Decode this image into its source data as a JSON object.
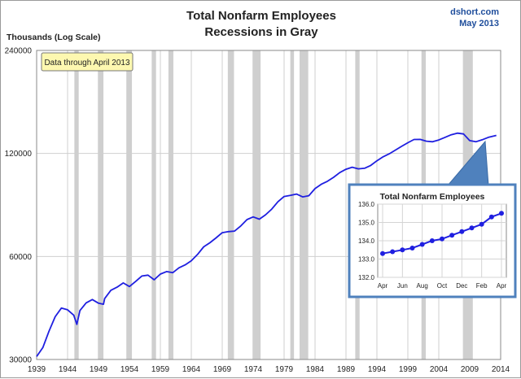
{
  "header": {
    "title_line1": "Total Nonfarm Employees",
    "title_line2": "Recessions in Gray",
    "source": "dshort.com",
    "date": "May 2013"
  },
  "chart_data": [
    {
      "type": "line",
      "title": "Total Nonfarm Employees",
      "subtitle": "Recessions in Gray",
      "ylabel": "Thousands (Log Scale)",
      "xlabel": "",
      "annotation": "Data through April 2013",
      "y_scale": "log",
      "ylim": [
        30000,
        240000
      ],
      "xlim": [
        1939,
        2014
      ],
      "y_ticks": [
        30000,
        60000,
        120000,
        240000
      ],
      "y_tick_labels": [
        "30000",
        "60000",
        "120000",
        "240000"
      ],
      "x_ticks": [
        1939,
        1944,
        1949,
        1954,
        1959,
        1964,
        1969,
        1974,
        1979,
        1984,
        1989,
        1994,
        1999,
        2004,
        2009,
        2014
      ],
      "x_tick_labels": [
        "1939",
        "1944",
        "1949",
        "1954",
        "1959",
        "1964",
        "1969",
        "1974",
        "1979",
        "1984",
        "1989",
        "1994",
        "1999",
        "2004",
        "2009",
        "2014"
      ],
      "grid": true,
      "line_color": "#1f1fe0",
      "recession_color": "#cfcfcf",
      "recessions": [
        [
          1945.1,
          1945.8
        ],
        [
          1948.9,
          1949.8
        ],
        [
          1953.5,
          1954.4
        ],
        [
          1957.6,
          1958.3
        ],
        [
          1960.3,
          1961.1
        ],
        [
          1969.9,
          1970.9
        ],
        [
          1973.9,
          1975.2
        ],
        [
          1980.0,
          1980.6
        ],
        [
          1981.5,
          1982.9
        ],
        [
          1990.5,
          1991.2
        ],
        [
          2001.2,
          2001.9
        ],
        [
          2007.9,
          2009.5
        ]
      ],
      "series": [
        {
          "x": [
            1939,
            1940,
            1941,
            1942,
            1943,
            1944,
            1945,
            1945.5,
            1946,
            1947,
            1948,
            1949,
            1949.8,
            1950,
            1951,
            1952,
            1953,
            1954,
            1955,
            1956,
            1957,
            1958,
            1959,
            1960,
            1961,
            1962,
            1963,
            1964,
            1965,
            1966,
            1967,
            1968,
            1969,
            1970,
            1971,
            1972,
            1973,
            1974,
            1975,
            1976,
            1977,
            1978,
            1979,
            1980,
            1981,
            1982,
            1983,
            1984,
            1985,
            1986,
            1987,
            1988,
            1989,
            1990,
            1991,
            1992,
            1993,
            1994,
            1995,
            1996,
            1997,
            1998,
            1999,
            2000,
            2001,
            2002,
            2003,
            2004,
            2005,
            2006,
            2007,
            2008,
            2009,
            2010,
            2011,
            2012,
            2013.3
          ],
          "values": [
            30600,
            32500,
            36300,
            40000,
            42400,
            41900,
            40400,
            38000,
            41700,
            43900,
            44900,
            43800,
            43500,
            45200,
            47800,
            48800,
            50200,
            49000,
            50700,
            52600,
            52900,
            51300,
            53300,
            54200,
            53800,
            55600,
            56700,
            58300,
            60800,
            64000,
            65800,
            68000,
            70400,
            70900,
            71200,
            73700,
            76900,
            78300,
            77100,
            79400,
            82500,
            86700,
            89800,
            90500,
            91300,
            89600,
            90300,
            94700,
            97500,
            99500,
            102200,
            105500,
            107900,
            109400,
            108200,
            108600,
            110700,
            114200,
            117300,
            119700,
            122800,
            125900,
            129000,
            131800,
            131900,
            130300,
            129800,
            131400,
            133700,
            136100,
            137600,
            136800,
            130800,
            129800,
            131500,
            133700,
            135500
          ]
        }
      ],
      "callout_from": [
        2011.5,
        130000
      ]
    },
    {
      "type": "line",
      "title": "Total Nonfarm Employees",
      "ylim": [
        132.0,
        136.0
      ],
      "y_ticks": [
        132.0,
        133.0,
        134.0,
        135.0,
        136.0
      ],
      "y_tick_labels": [
        "132.0",
        "133.0",
        "134.0",
        "135.0",
        "136.0"
      ],
      "x_tick_labels": [
        "Apr",
        "Jun",
        "Aug",
        "Oct",
        "Dec",
        "Feb",
        "Apr"
      ],
      "x_tick_index": [
        0,
        2,
        4,
        6,
        8,
        10,
        12
      ],
      "grid": true,
      "marker": "circle",
      "line_color": "#1f1fe0",
      "series": [
        {
          "values": [
            133.3,
            133.4,
            133.5,
            133.6,
            133.8,
            134.0,
            134.1,
            134.3,
            134.5,
            134.7,
            134.9,
            135.3,
            135.5
          ]
        }
      ]
    }
  ]
}
